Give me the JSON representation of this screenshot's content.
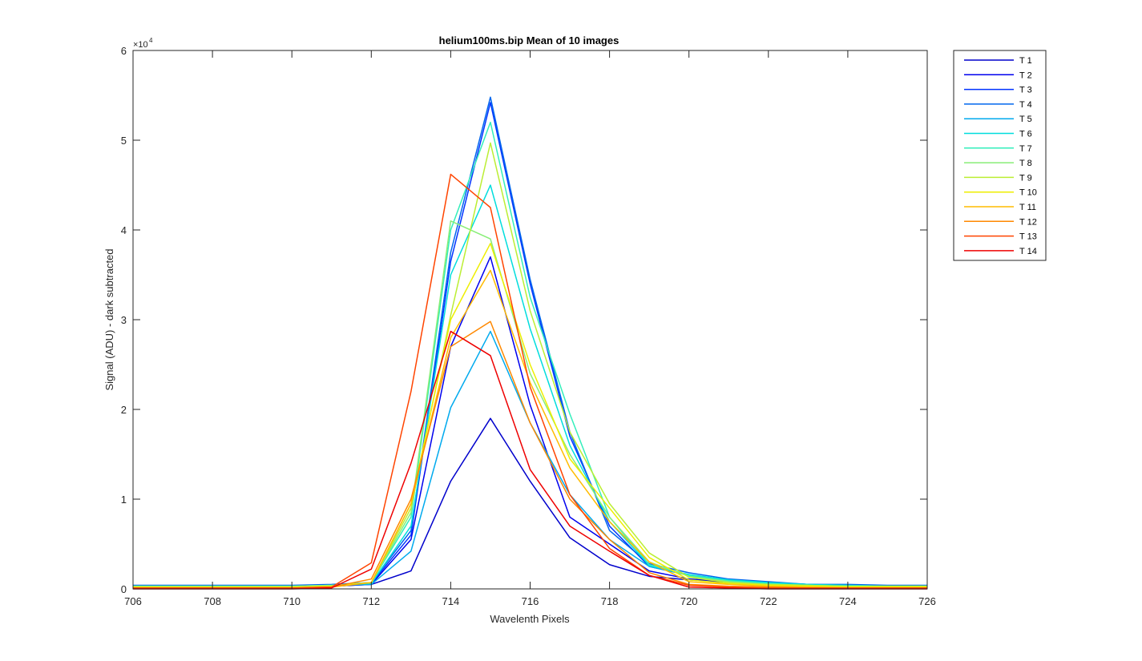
{
  "chart_data": {
    "type": "line",
    "title": "helium100ms.bip  Mean of 10 images",
    "xlabel": "Wavelenth Pixels",
    "ylabel": "Signal (ADU) - dark subtracted",
    "y_exponent_label": "×10",
    "y_exponent_power": "4",
    "xlim": [
      706,
      726
    ],
    "ylim": [
      0,
      60000
    ],
    "x_ticks": [
      "706",
      "708",
      "710",
      "712",
      "714",
      "716",
      "718",
      "720",
      "722",
      "724",
      "726"
    ],
    "y_ticks": [
      "0",
      "1",
      "2",
      "3",
      "4",
      "5",
      "6"
    ],
    "y_tick_values": [
      0,
      10000,
      20000,
      30000,
      40000,
      50000,
      60000
    ],
    "grid": false,
    "legend_position": "outside-right",
    "x": [
      706,
      707,
      708,
      709,
      710,
      711,
      712,
      713,
      714,
      715,
      716,
      717,
      718,
      719,
      720,
      721,
      722,
      723,
      724,
      725,
      726
    ],
    "series": [
      {
        "name": "T 1",
        "color": "#0000cc",
        "values": [
          200,
          200,
          200,
          200,
          200,
          300,
          500,
          2000,
          12000,
          19000,
          12000,
          5700,
          2700,
          1400,
          1000,
          700,
          500,
          400,
          300,
          300,
          300
        ]
      },
      {
        "name": "T 2",
        "color": "#0000ee",
        "values": [
          200,
          200,
          200,
          200,
          200,
          300,
          500,
          5500,
          27000,
          37000,
          20500,
          8000,
          5000,
          2000,
          1100,
          800,
          600,
          400,
          300,
          300,
          300
        ]
      },
      {
        "name": "T 3",
        "color": "#0033ff",
        "values": [
          300,
          300,
          300,
          300,
          300,
          400,
          600,
          6000,
          36500,
          54200,
          34000,
          17000,
          7000,
          2500,
          1500,
          1000,
          700,
          500,
          400,
          300,
          300
        ]
      },
      {
        "name": "T 4",
        "color": "#0066ee",
        "values": [
          400,
          400,
          400,
          400,
          400,
          500,
          700,
          6500,
          37500,
          54800,
          34500,
          17500,
          6500,
          2800,
          1800,
          1100,
          800,
          500,
          500,
          400,
          400
        ]
      },
      {
        "name": "T 5",
        "color": "#00aaee",
        "values": [
          300,
          300,
          300,
          300,
          300,
          400,
          500,
          4200,
          20200,
          28700,
          18500,
          10500,
          5500,
          2500,
          1500,
          1000,
          700,
          500,
          400,
          300,
          300
        ]
      },
      {
        "name": "T 6",
        "color": "#00dddd",
        "values": [
          300,
          300,
          300,
          300,
          300,
          400,
          600,
          7000,
          35000,
          45000,
          29000,
          16000,
          7500,
          2600,
          1600,
          1000,
          700,
          500,
          400,
          300,
          300
        ]
      },
      {
        "name": "T 7",
        "color": "#33eebb",
        "values": [
          300,
          300,
          300,
          300,
          300,
          400,
          700,
          8000,
          40000,
          52000,
          32500,
          19500,
          8000,
          2700,
          1500,
          900,
          600,
          400,
          300,
          300,
          300
        ]
      },
      {
        "name": "T 8",
        "color": "#88ee77",
        "values": [
          300,
          300,
          300,
          300,
          300,
          400,
          700,
          8500,
          41000,
          39000,
          24000,
          15000,
          8000,
          3000,
          1400,
          800,
          500,
          400,
          300,
          300,
          300
        ]
      },
      {
        "name": "T 9",
        "color": "#bbee33",
        "values": [
          200,
          200,
          200,
          200,
          200,
          300,
          700,
          9000,
          30500,
          49700,
          31000,
          17500,
          9500,
          4000,
          1300,
          700,
          500,
          400,
          300,
          300,
          300
        ]
      },
      {
        "name": "T 10",
        "color": "#eeee00",
        "values": [
          200,
          200,
          200,
          200,
          200,
          300,
          700,
          9500,
          30000,
          38500,
          25000,
          14500,
          9000,
          3500,
          1000,
          600,
          400,
          300,
          200,
          200,
          200
        ]
      },
      {
        "name": "T 11",
        "color": "#ffbb00",
        "values": [
          100,
          100,
          100,
          100,
          100,
          200,
          700,
          9500,
          28000,
          35500,
          23000,
          13500,
          7500,
          3000,
          800,
          500,
          300,
          200,
          100,
          100,
          100
        ]
      },
      {
        "name": "T 12",
        "color": "#ff8800",
        "values": [
          100,
          100,
          100,
          100,
          100,
          200,
          1100,
          10000,
          27000,
          29800,
          18500,
          10000,
          5500,
          1800,
          500,
          300,
          200,
          100,
          100,
          100,
          100
        ]
      },
      {
        "name": "T 13",
        "color": "#ff4400",
        "values": [
          100,
          100,
          100,
          100,
          100,
          200,
          2900,
          22000,
          46200,
          42500,
          22500,
          10500,
          4500,
          1500,
          400,
          200,
          100,
          100,
          100,
          100,
          100
        ]
      },
      {
        "name": "T 14",
        "color": "#ee0000",
        "values": [
          0,
          0,
          0,
          0,
          0,
          100,
          2200,
          14000,
          28700,
          26000,
          13300,
          7000,
          4200,
          1500,
          200,
          100,
          0,
          0,
          0,
          0,
          0
        ]
      }
    ]
  }
}
